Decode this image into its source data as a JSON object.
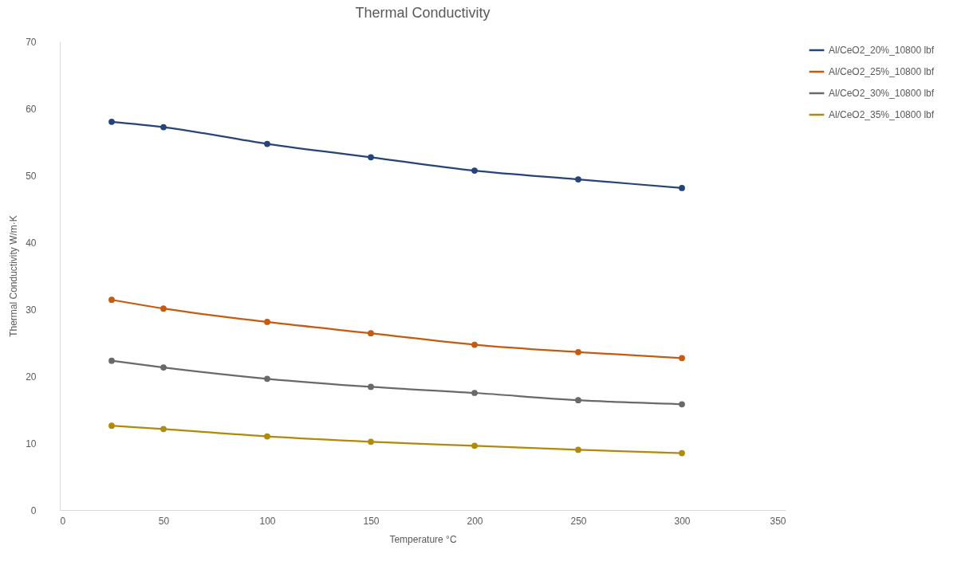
{
  "chart_data": {
    "type": "line",
    "title": "Thermal Conductivity",
    "xlabel": "Temperature °C",
    "ylabel": "Thermal Conductivity W/m·K",
    "x": [
      25,
      50,
      100,
      150,
      200,
      250,
      300
    ],
    "series": [
      {
        "name": "Al/CeO2_20%_10800 lbf",
        "color": "#264478",
        "values": [
          58.0,
          57.2,
          54.7,
          52.7,
          50.7,
          49.4,
          48.1
        ]
      },
      {
        "name": "Al/CeO2_25%_10800 lbf",
        "color": "#c55a11",
        "values": [
          31.4,
          30.1,
          28.1,
          26.4,
          24.7,
          23.6,
          22.7
        ]
      },
      {
        "name": "Al/CeO2_30%_10800 lbf",
        "color": "#696969",
        "values": [
          22.3,
          21.3,
          19.6,
          18.4,
          17.5,
          16.4,
          15.8
        ]
      },
      {
        "name": "Al/CeO2_35%_10800 lbf",
        "color": "#b08a0a",
        "values": [
          12.6,
          12.1,
          11.0,
          10.2,
          9.6,
          9.0,
          8.5
        ]
      }
    ],
    "xlim": [
      0,
      350
    ],
    "xticks": [
      0,
      50,
      100,
      150,
      200,
      250,
      300,
      350
    ],
    "ylim": [
      0,
      70
    ],
    "yticks": [
      0,
      10,
      20,
      30,
      40,
      50,
      60,
      70
    ],
    "grid": false,
    "legend": "right",
    "marker": "circle",
    "line_style": "solid"
  }
}
